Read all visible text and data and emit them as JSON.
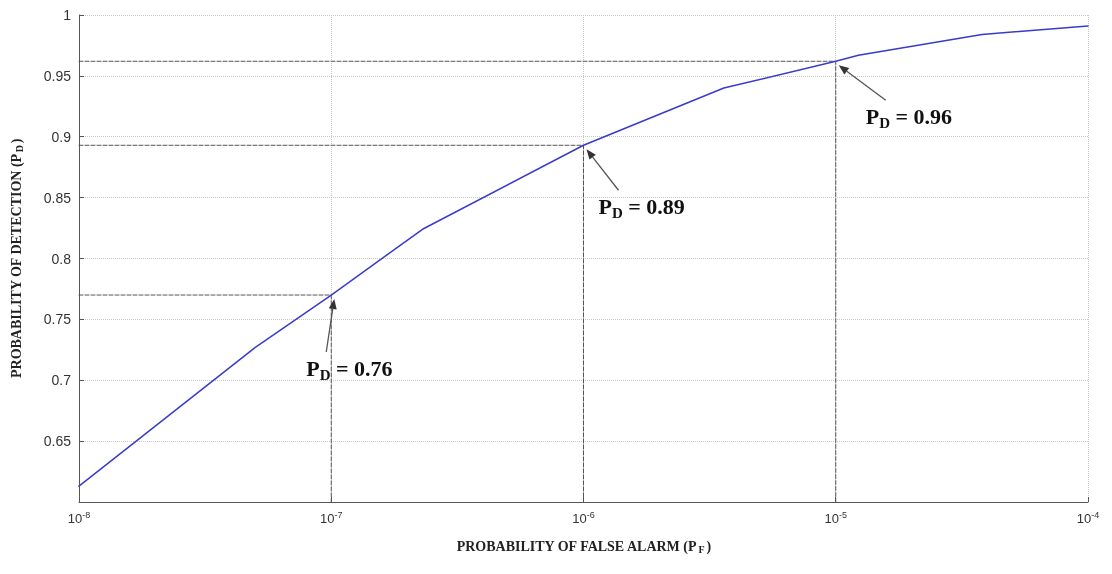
{
  "chart_data": {
    "type": "line",
    "xlabel": "PROBABILITY OF FALSE ALARM (P$_{F}$)",
    "ylabel": "PROBABILITY OF DETECTION (P$_{D}$)",
    "log": "x",
    "xlim": [
      1e-08,
      0.0001
    ],
    "xticks": [
      {
        "value": 1e-08,
        "label": "10$^{-8}$"
      },
      {
        "value": 1e-07,
        "label": "10$^{-7}$"
      },
      {
        "value": 1e-06,
        "label": "10$^{-6}$"
      },
      {
        "value": 1e-05,
        "label": "10$^{-5}$"
      },
      {
        "value": 0.0001,
        "label": "10$^{-4}$"
      }
    ],
    "ylim": [
      0.6,
      1
    ],
    "yticks": [
      0.65,
      0.7,
      0.75,
      0.8,
      0.85,
      0.9,
      0.95,
      1
    ],
    "grid": true,
    "marker": "none",
    "series": [
      {
        "color": "#3a3acc",
        "line_style": "solid",
        "x": [
          1e-08,
          5e-08,
          1e-07,
          2.3e-07,
          1e-06,
          3.6e-06,
          1e-05,
          1.23e-05,
          3.8e-05,
          0.0001
        ],
        "values": [
          0.613,
          0.727,
          0.77,
          0.824,
          0.893,
          0.94,
          0.962,
          0.967,
          0.984,
          0.991
        ]
      },
      {
        "color": "#555555",
        "line_style": "dashed",
        "x": [
          1e-08,
          1e-07,
          1e-07
        ],
        "values": [
          0.77,
          0.77,
          0.6
        ]
      },
      {
        "color": "#555555",
        "line_style": "dashed",
        "x": [
          1e-08,
          1e-06,
          1e-06
        ],
        "values": [
          0.893,
          0.893,
          0.6
        ]
      },
      {
        "color": "#555555",
        "line_style": "dashed",
        "x": [
          1e-08,
          1e-05,
          1e-05
        ],
        "values": [
          0.962,
          0.962,
          0.6
        ]
      }
    ],
    "annotations": [
      {
        "text": "P$_{D}$ = 0.76",
        "x": 1e-07,
        "y": 0.77
      },
      {
        "text": "P$_{D}$ = 0.89",
        "x": 1e-06,
        "y": 0.893
      },
      {
        "text": "P$_{D}$ = 0.96",
        "x": 1e-05,
        "y": 0.962
      }
    ]
  }
}
